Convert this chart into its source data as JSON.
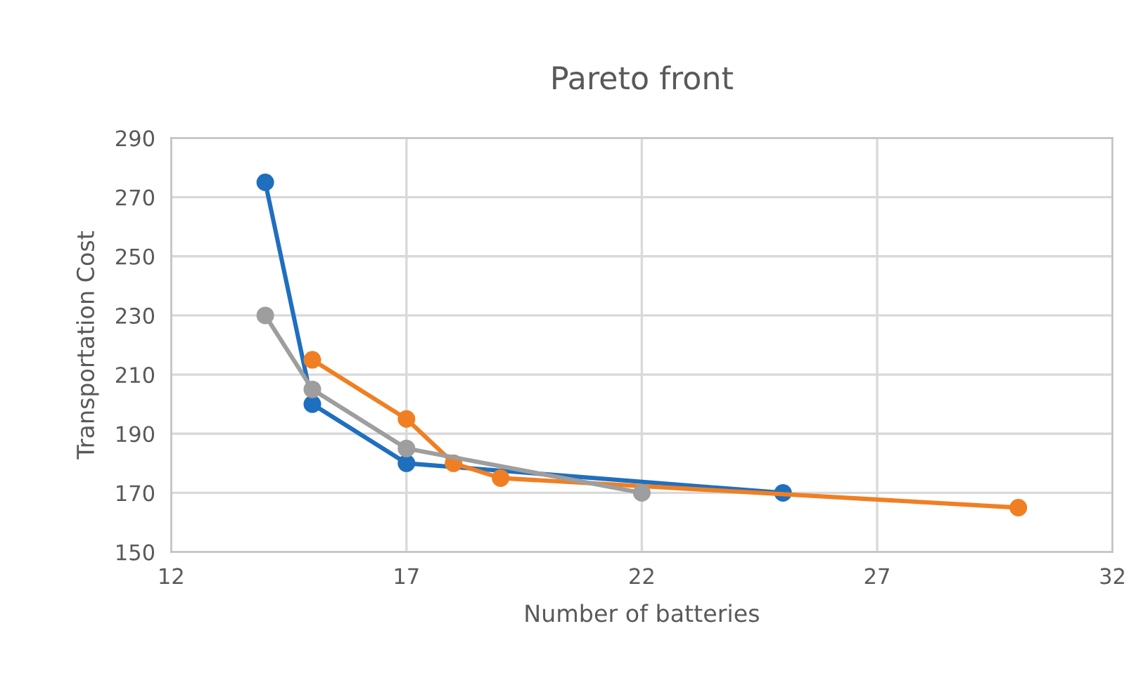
{
  "chart_data": {
    "type": "line",
    "title": "Pareto front",
    "xlabel": "Number of batteries",
    "ylabel": "Transportation Cost",
    "series": [
      {
        "color": "#1f6fbf",
        "x": [
          14,
          15,
          17,
          25
        ],
        "values": [
          275,
          200,
          180,
          170
        ]
      },
      {
        "color": "#f07f23",
        "x": [
          15,
          17,
          18,
          19,
          30
        ],
        "values": [
          215,
          195,
          180,
          175,
          165
        ]
      },
      {
        "color": "#9e9e9e",
        "x": [
          14,
          15,
          17,
          22
        ],
        "values": [
          230,
          205,
          185,
          170
        ]
      }
    ],
    "xlim": [
      12,
      32
    ],
    "xticks": [
      12,
      17,
      22,
      27,
      32
    ],
    "ylim": [
      150,
      290
    ],
    "yticks": [
      150,
      170,
      190,
      210,
      230,
      250,
      270,
      290
    ],
    "grid": true,
    "marker": "circle",
    "line_style": "solid",
    "legend": false
  }
}
